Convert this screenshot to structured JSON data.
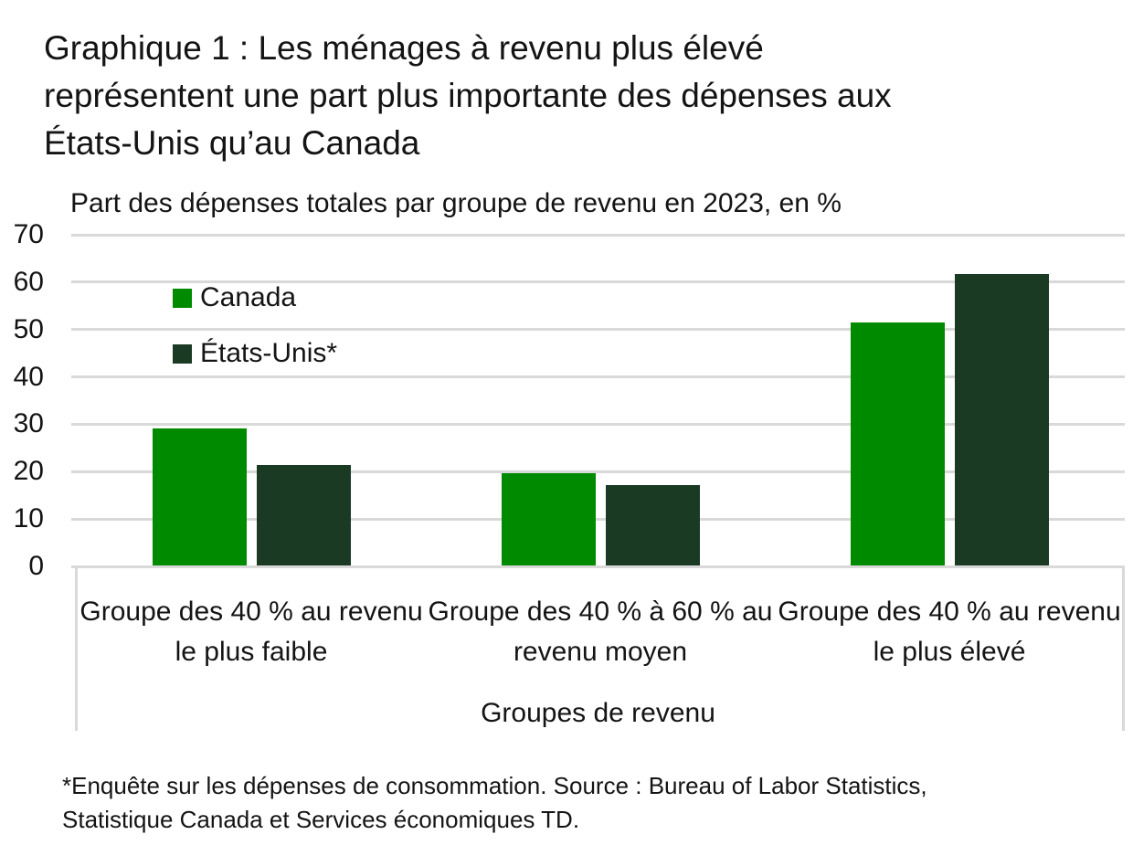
{
  "chart": {
    "title_lines": [
      "Graphique 1 : Les ménages à revenu plus élevé",
      "représentent une part plus importante des dépenses aux",
      "États-Unis qu’au Canada"
    ],
    "subtitle": "Part des dépenses totales par groupe de revenu en 2023, en %",
    "footnote_lines": [
      "*Enquête sur les dépenses de consommation. Source : Bureau of Labor Statistics,",
      "Statistique Canada et Services économiques TD."
    ]
  },
  "chart_data": {
    "type": "bar",
    "title": "Graphique 1 : Les ménages à revenu plus élevé représentent une part plus importante des dépenses aux États-Unis qu’au Canada",
    "subtitle": "Part des dépenses totales par groupe de revenu en 2023, en %",
    "xlabel": "Groupes de revenu",
    "ylabel": "",
    "categories": [
      "Groupe des 40 % au revenu le plus faible",
      "Groupe des 40 % à 60 % au revenu moyen",
      "Groupe des 40 % au revenu le plus élevé"
    ],
    "series": [
      {
        "name": "Canada",
        "color": "#008a00",
        "values": [
          29.0,
          19.4,
          51.3
        ]
      },
      {
        "name": "États-Unis*",
        "color": "#1a3a24",
        "values": [
          21.2,
          16.9,
          61.6
        ]
      }
    ],
    "ylim": [
      0,
      70
    ],
    "yticks": [
      0,
      10,
      20,
      30,
      40,
      50,
      60,
      70
    ],
    "grid": true,
    "legend_position": "upper-left-inside",
    "footnote": "*Enquête sur les dépenses de consommation. Source : Bureau of Labor Statistics, Statistique Canada et Services économiques TD."
  },
  "colors": {
    "canada_green": "#008a00",
    "us_dark_green": "#1a3a24",
    "gridline": "#d9d9d9",
    "text": "#141414"
  }
}
